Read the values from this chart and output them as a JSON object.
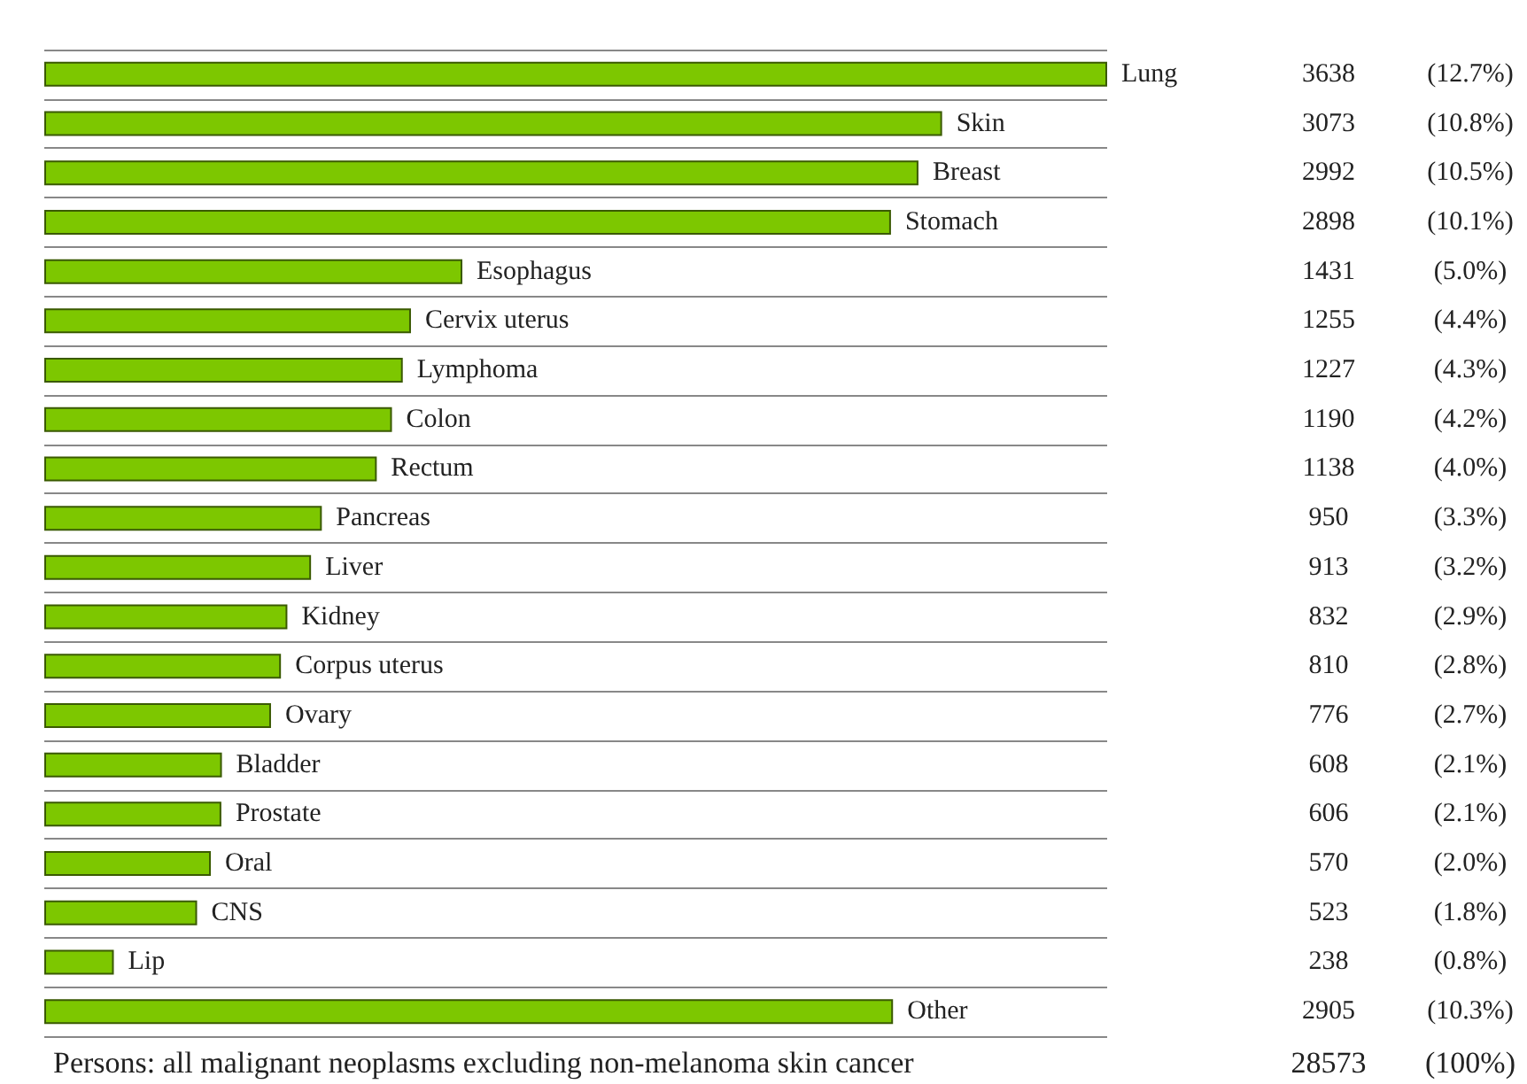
{
  "chart_data": {
    "type": "bar",
    "orientation": "horizontal",
    "data_labels": true,
    "grid": "y",
    "color": "#7dc700",
    "categories": [
      "Lung",
      "Skin",
      "Breast",
      "Stomach",
      "Esophagus",
      "Cervix uterus",
      "Lymphoma",
      "Colon",
      "Rectum",
      "Pancreas",
      "Liver",
      "Kidney",
      "Corpus uterus",
      "Ovary",
      "Bladder",
      "Prostate",
      "Oral",
      "CNS",
      "Lip",
      "Other"
    ],
    "values": [
      3638,
      3073,
      2992,
      2898,
      1431,
      1255,
      1227,
      1190,
      1138,
      950,
      913,
      832,
      810,
      776,
      608,
      606,
      570,
      523,
      238,
      2905
    ],
    "annotations": [
      "(12.7%)",
      "(10.8%)",
      "(10.5%)",
      "(10.1%)",
      "(5.0%)",
      "(4.4%)",
      "(4.3%)",
      "(4.2%)",
      "(4.0%)",
      "(3.3%)",
      "(3.2%)",
      "(2.9%)",
      "(2.8%)",
      "(2.7%)",
      "(2.1%)",
      "(2.1%)",
      "(2.0%)",
      "(1.8%)",
      "(0.8%)",
      "(10.3%)",
      "Persons: all malignant neoplasms excluding non-melanoma skin cancer",
      "28573",
      "(100%)"
    ]
  }
}
